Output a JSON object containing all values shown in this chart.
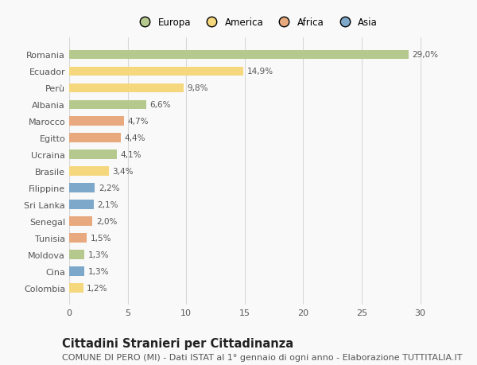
{
  "countries": [
    "Romania",
    "Ecuador",
    "Perù",
    "Albania",
    "Marocco",
    "Egitto",
    "Ucraina",
    "Brasile",
    "Filippine",
    "Sri Lanka",
    "Senegal",
    "Tunisia",
    "Moldova",
    "Cina",
    "Colombia"
  ],
  "values": [
    29.0,
    14.9,
    9.8,
    6.6,
    4.7,
    4.4,
    4.1,
    3.4,
    2.2,
    2.1,
    2.0,
    1.5,
    1.3,
    1.3,
    1.2
  ],
  "labels": [
    "29,0%",
    "14,9%",
    "9,8%",
    "6,6%",
    "4,7%",
    "4,4%",
    "4,1%",
    "3,4%",
    "2,2%",
    "2,1%",
    "2,0%",
    "1,5%",
    "1,3%",
    "1,3%",
    "1,2%"
  ],
  "regions": [
    "Europa",
    "America",
    "America",
    "Europa",
    "Africa",
    "Africa",
    "Europa",
    "America",
    "Asia",
    "Asia",
    "Africa",
    "Africa",
    "Europa",
    "Asia",
    "America"
  ],
  "region_colors": {
    "Europa": "#b5c98e",
    "America": "#f5d77e",
    "Africa": "#e8a97e",
    "Asia": "#7ea8c9"
  },
  "legend_order": [
    "Europa",
    "America",
    "Africa",
    "Asia"
  ],
  "title": "Cittadini Stranieri per Cittadinanza",
  "subtitle": "COMUNE DI PERO (MI) - Dati ISTAT al 1° gennaio di ogni anno - Elaborazione TUTTITALIA.IT",
  "xlim": [
    0,
    32
  ],
  "xticks": [
    0,
    5,
    10,
    15,
    20,
    25,
    30
  ],
  "background_color": "#f9f9f9",
  "grid_color": "#d8d8d8",
  "bar_height": 0.55,
  "title_fontsize": 10.5,
  "subtitle_fontsize": 8,
  "label_fontsize": 7.5,
  "tick_fontsize": 8,
  "legend_fontsize": 8.5
}
